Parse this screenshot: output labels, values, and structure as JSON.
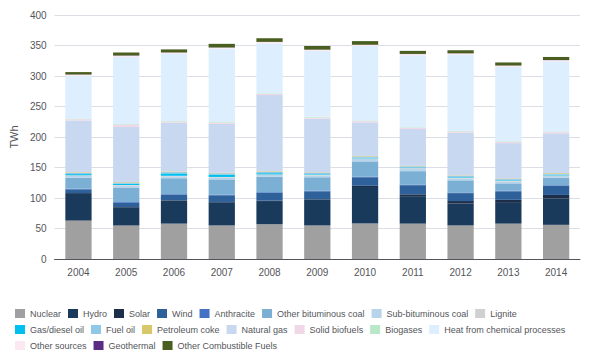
{
  "chart_data": {
    "type": "bar",
    "stacked": true,
    "categories": [
      "2004",
      "2005",
      "2006",
      "2007",
      "2008",
      "2009",
      "2010",
      "2011",
      "2012",
      "2013",
      "2014"
    ],
    "ylabel": "TWh",
    "ylim": [
      0,
      400
    ],
    "yticks": [
      0,
      50,
      100,
      150,
      200,
      250,
      300,
      350,
      400
    ],
    "grid": true,
    "legend": "bottom",
    "series": [
      {
        "name": "Nuclear",
        "color": "#a0a0a0",
        "values": [
          63,
          55,
          58,
          55,
          57,
          55,
          58,
          58,
          55,
          58,
          56
        ]
      },
      {
        "name": "Hydro",
        "color": "#1a3a5c",
        "values": [
          45,
          30,
          38,
          38,
          38,
          42,
          60,
          45,
          36,
          34,
          43
        ]
      },
      {
        "name": "Solar",
        "color": "#1c2e4a",
        "values": [
          0.2,
          0.3,
          0.4,
          0.5,
          0.7,
          1,
          2,
          3,
          4,
          5,
          6
        ]
      },
      {
        "name": "Wind",
        "color": "#2e6099",
        "values": [
          6,
          7,
          9,
          11,
          13,
          13,
          14,
          15,
          13,
          14,
          15
        ]
      },
      {
        "name": "Anthracite",
        "color": "#4472c4",
        "values": [
          1,
          1,
          1,
          1,
          1,
          1,
          1,
          1,
          1,
          1,
          1
        ]
      },
      {
        "name": "Other bituminous coal",
        "color": "#7bafd4",
        "values": [
          18,
          24,
          26,
          25,
          25,
          22,
          25,
          22,
          20,
          12,
          12
        ]
      },
      {
        "name": "Sub-bituminous coal",
        "color": "#b8d4ea",
        "values": [
          3,
          3,
          3,
          3,
          3,
          3,
          4,
          4,
          3,
          3,
          3
        ]
      },
      {
        "name": "Lignite",
        "color": "#d0d0d0",
        "values": [
          1,
          1,
          1,
          1,
          1,
          1,
          1,
          1,
          1,
          1,
          1
        ]
      },
      {
        "name": "Gas/diesel oil",
        "color": "#00c0f0",
        "values": [
          2,
          2,
          4,
          4,
          2,
          1,
          1,
          1,
          1,
          1,
          1
        ]
      },
      {
        "name": "Fuel oil",
        "color": "#90c8e8",
        "values": [
          2,
          2,
          2,
          2,
          2,
          2,
          2,
          2,
          2,
          2,
          2
        ]
      },
      {
        "name": "Petroleum coke",
        "color": "#d8c86a",
        "values": [
          1,
          1,
          1,
          1,
          1,
          1,
          1,
          1,
          1,
          1,
          1
        ]
      },
      {
        "name": "Natural gas",
        "color": "#c8d8f0",
        "values": [
          85,
          90,
          80,
          80,
          125,
          88,
          55,
          60,
          70,
          58,
          65
        ]
      },
      {
        "name": "Solid biofuels",
        "color": "#f0d8e8",
        "values": [
          2,
          4,
          2,
          2,
          2,
          2,
          2,
          2,
          2,
          2,
          2
        ]
      },
      {
        "name": "Biogases",
        "color": "#b8e8c8",
        "values": [
          1,
          1,
          1,
          1,
          1,
          1,
          1,
          1,
          1,
          1,
          1
        ]
      },
      {
        "name": "Heat from chemical processes",
        "color": "#ddeeff",
        "values": [
          70,
          110,
          110,
          120,
          82,
          108,
          122,
          118,
          125,
          122,
          115
        ]
      },
      {
        "name": "Other sources",
        "color": "#fce8f0",
        "values": [
          2,
          2,
          2,
          2,
          2,
          2,
          2,
          2,
          2,
          2,
          2
        ]
      },
      {
        "name": "Geothermal",
        "color": "#5a2d82",
        "values": [
          0.2,
          0.2,
          0.2,
          0.2,
          0.2,
          0.2,
          0.2,
          0.2,
          0.2,
          0.2,
          0.2
        ]
      },
      {
        "name": "Other Combustible Fuels",
        "color": "#4a5e20",
        "values": [
          4,
          5,
          5,
          6,
          6,
          6,
          6,
          5,
          5,
          5,
          5
        ]
      }
    ]
  }
}
